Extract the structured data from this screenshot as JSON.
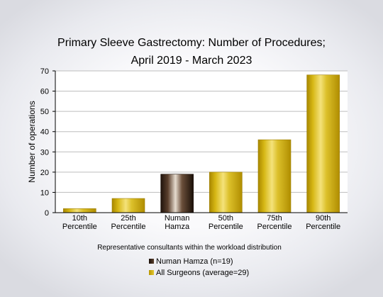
{
  "chart_data": {
    "type": "bar",
    "title": [
      "Primary Sleeve Gastrectomy: Number of Procedures;",
      "April 2019 - March 2023"
    ],
    "xlabel": "Representative consultants within the workload distribution",
    "ylabel": "Number of operations",
    "ylim": [
      0,
      70
    ],
    "yticks": [
      0,
      10,
      20,
      30,
      40,
      50,
      60,
      70
    ],
    "grid": true,
    "categories": [
      [
        "10th",
        "Percentile"
      ],
      [
        "25th",
        "Percentile"
      ],
      [
        "Numan",
        "Hamza"
      ],
      [
        "50th",
        "Percentile"
      ],
      [
        "75th",
        "Percentile"
      ],
      [
        "90th",
        "Percentile"
      ]
    ],
    "values": [
      2,
      7,
      19,
      20,
      36,
      68
    ],
    "highlight_index": 2,
    "colors": {
      "surgeon": "#2a1a12",
      "all": "#d4b00c"
    },
    "legend": {
      "placement": "bottom-center",
      "items": [
        {
          "label": "Numan Hamza (n=19)",
          "color": "#2a1a12"
        },
        {
          "label": "All Surgeons (average=29)",
          "color": "#d4b00c"
        }
      ]
    }
  }
}
